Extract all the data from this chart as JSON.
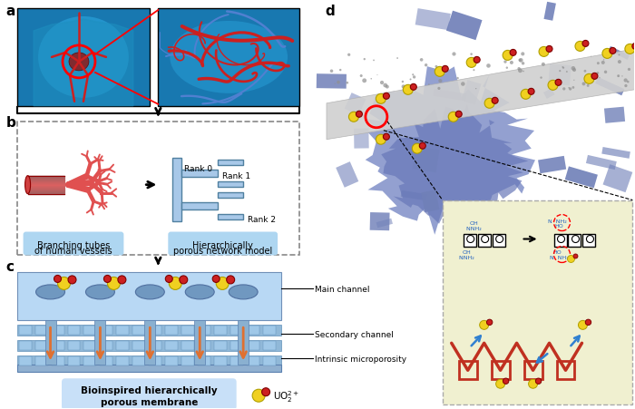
{
  "panel_a_label": "a",
  "panel_b_label": "b",
  "panel_c_label": "c",
  "panel_d_label": "d",
  "panel_b_left_label1": "Branching tubes",
  "panel_b_left_label2": "of human vessels",
  "panel_b_right_label1": "Hierarchically",
  "panel_b_right_label2": "porous network model",
  "rank0": "Rank 0",
  "rank1": "Rank 1",
  "rank2": "Rank 2",
  "panel_c_bottom_label": "Bioinspired hierarchically\nporous membrane",
  "main_channel": "Main channel",
  "secondary_channel": "Secondary channel",
  "intrinsic_micro": "Intrinsic microporosity",
  "uo2_label": "UO$_2^{2+}$",
  "bg_color": "#ffffff",
  "light_blue": "#aed6f1",
  "blue_tube": "#a8c8e8",
  "red_tube": "#e05050",
  "orange_arrow": "#e07030",
  "yellow_ball": "#f0d020",
  "red_ball": "#cc2020",
  "chem_bg": "#f0f0d0",
  "dark_blue_3d": "#7080b8",
  "gray_membrane": "#c8c8c8",
  "membrane_blue": "#a0c0e0",
  "membrane_dark": "#7090b0",
  "membrane_mid": "#90aac8"
}
